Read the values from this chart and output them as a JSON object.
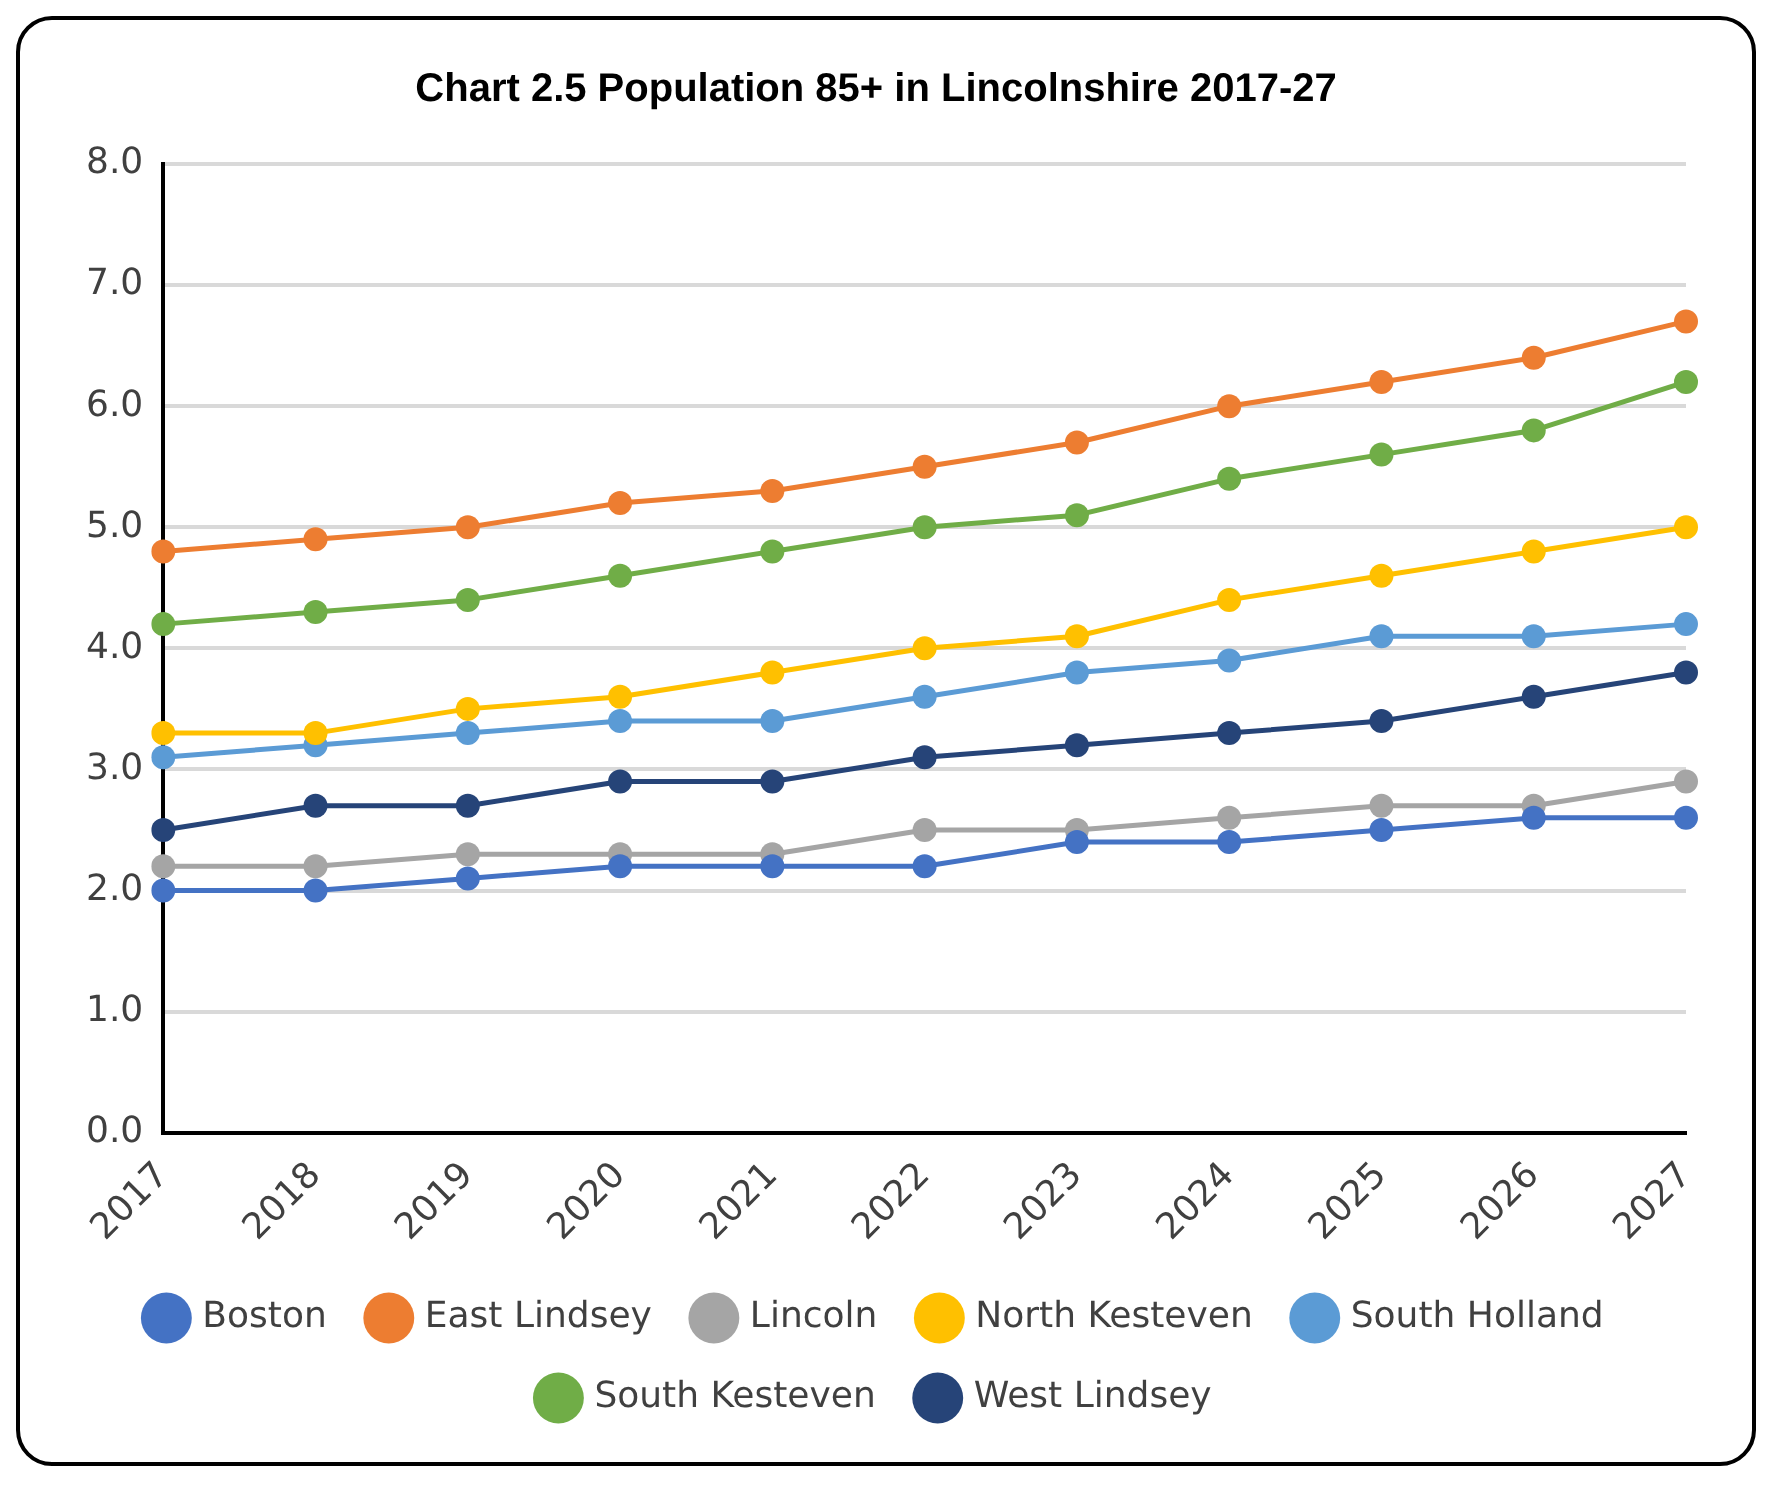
{
  "chart_data": {
    "type": "line",
    "title": "Chart 2.5 Population 85+ in Lincolnshire 2017-27",
    "categories": [
      "2017",
      "2018",
      "2019",
      "2020",
      "2021",
      "2022",
      "2023",
      "2024",
      "2025",
      "2026",
      "2027"
    ],
    "series": [
      {
        "name": "Boston",
        "color": "#4472c4",
        "values": [
          2.0,
          2.0,
          2.1,
          2.2,
          2.2,
          2.2,
          2.4,
          2.4,
          2.5,
          2.6,
          2.6
        ]
      },
      {
        "name": "East Lindsey",
        "color": "#ed7d31",
        "values": [
          4.8,
          4.9,
          5.0,
          5.2,
          5.3,
          5.5,
          5.7,
          6.0,
          6.2,
          6.4,
          6.7
        ]
      },
      {
        "name": "Lincoln",
        "color": "#a5a5a5",
        "values": [
          2.2,
          2.2,
          2.3,
          2.3,
          2.3,
          2.5,
          2.5,
          2.6,
          2.7,
          2.7,
          2.9
        ]
      },
      {
        "name": "North Kesteven",
        "color": "#ffc000",
        "values": [
          3.3,
          3.3,
          3.5,
          3.6,
          3.8,
          4.0,
          4.1,
          4.4,
          4.6,
          4.8,
          5.0
        ]
      },
      {
        "name": "South Holland",
        "color": "#5b9bd5",
        "values": [
          3.1,
          3.2,
          3.3,
          3.4,
          3.4,
          3.6,
          3.8,
          3.9,
          4.1,
          4.1,
          4.2
        ]
      },
      {
        "name": "South Kesteven",
        "color": "#70ad47",
        "values": [
          4.2,
          4.3,
          4.4,
          4.6,
          4.8,
          5.0,
          5.1,
          5.4,
          5.6,
          5.8,
          6.2
        ]
      },
      {
        "name": "West Lindsey",
        "color": "#264478",
        "values": [
          2.5,
          2.7,
          2.7,
          2.9,
          2.9,
          3.1,
          3.2,
          3.3,
          3.4,
          3.6,
          3.8
        ]
      }
    ],
    "ylim": [
      0,
      8
    ],
    "yticks": [
      {
        "value": 0,
        "label": "0.0"
      },
      {
        "value": 1,
        "label": "1.0"
      },
      {
        "value": 2,
        "label": "2.0"
      },
      {
        "value": 3,
        "label": "3.0"
      },
      {
        "value": 4,
        "label": "4.0"
      },
      {
        "value": 5,
        "label": "5.0"
      },
      {
        "value": 6,
        "label": "6.0"
      },
      {
        "value": 7,
        "label": "7.0"
      },
      {
        "value": 8,
        "label": "8.0"
      }
    ],
    "grid": "y",
    "legend": "bottom",
    "marker": "circle",
    "line_style": "solid"
  }
}
